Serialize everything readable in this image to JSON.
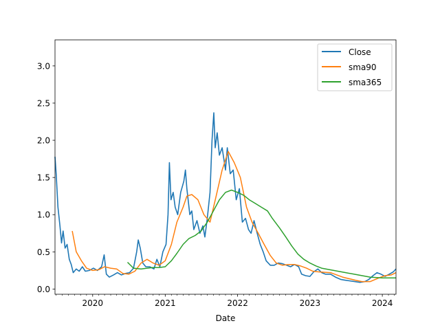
{
  "chart_data": {
    "type": "line",
    "title": "",
    "xlabel": "Date",
    "ylabel": "",
    "xlim": [
      "2019-06-25",
      "2024-03-10"
    ],
    "ylim": [
      -0.07,
      3.35
    ],
    "x_ticks": [
      "2020",
      "2021",
      "2022",
      "2023",
      "2024"
    ],
    "y_ticks": [
      "0.0",
      "0.5",
      "1.0",
      "1.5",
      "2.0",
      "2.5",
      "3.0"
    ],
    "legend": {
      "location": "top-right",
      "entries": [
        "Close",
        "sma90",
        "sma365"
      ]
    },
    "grid": false,
    "series": [
      {
        "name": "Close",
        "color": "#1f77b4",
        "points": [
          [
            "2019-06-25",
            1.78
          ],
          [
            "2019-07-01",
            1.55
          ],
          [
            "2019-07-10",
            1.1
          ],
          [
            "2019-07-20",
            0.85
          ],
          [
            "2019-07-28",
            0.62
          ],
          [
            "2019-08-05",
            0.78
          ],
          [
            "2019-08-15",
            0.55
          ],
          [
            "2019-08-25",
            0.6
          ],
          [
            "2019-09-05",
            0.4
          ],
          [
            "2019-09-15",
            0.33
          ],
          [
            "2019-09-25",
            0.22
          ],
          [
            "2019-10-10",
            0.27
          ],
          [
            "2019-10-25",
            0.24
          ],
          [
            "2019-11-10",
            0.3
          ],
          [
            "2019-11-25",
            0.24
          ],
          [
            "2019-12-15",
            0.25
          ],
          [
            "2020-01-05",
            0.28
          ],
          [
            "2020-01-25",
            0.25
          ],
          [
            "2020-02-15",
            0.3
          ],
          [
            "2020-02-28",
            0.46
          ],
          [
            "2020-03-10",
            0.2
          ],
          [
            "2020-03-25",
            0.16
          ],
          [
            "2020-04-15",
            0.19
          ],
          [
            "2020-05-05",
            0.22
          ],
          [
            "2020-05-25",
            0.19
          ],
          [
            "2020-06-15",
            0.21
          ],
          [
            "2020-07-05",
            0.22
          ],
          [
            "2020-07-25",
            0.28
          ],
          [
            "2020-08-10",
            0.5
          ],
          [
            "2020-08-18",
            0.66
          ],
          [
            "2020-08-28",
            0.55
          ],
          [
            "2020-09-10",
            0.35
          ],
          [
            "2020-09-25",
            0.3
          ],
          [
            "2020-10-15",
            0.3
          ],
          [
            "2020-11-05",
            0.27
          ],
          [
            "2020-11-20",
            0.4
          ],
          [
            "2020-12-05",
            0.3
          ],
          [
            "2020-12-20",
            0.5
          ],
          [
            "2021-01-05",
            0.6
          ],
          [
            "2021-01-15",
            1.0
          ],
          [
            "2021-01-22",
            1.7
          ],
          [
            "2021-01-30",
            1.2
          ],
          [
            "2021-02-10",
            1.3
          ],
          [
            "2021-02-20",
            1.1
          ],
          [
            "2021-03-05",
            1.0
          ],
          [
            "2021-03-20",
            1.3
          ],
          [
            "2021-04-05",
            1.45
          ],
          [
            "2021-04-13",
            1.6
          ],
          [
            "2021-04-20",
            1.35
          ],
          [
            "2021-05-05",
            1.0
          ],
          [
            "2021-05-15",
            1.05
          ],
          [
            "2021-05-25",
            0.8
          ],
          [
            "2021-06-10",
            0.92
          ],
          [
            "2021-06-25",
            0.75
          ],
          [
            "2021-07-10",
            0.85
          ],
          [
            "2021-07-20",
            0.7
          ],
          [
            "2021-08-01",
            0.95
          ],
          [
            "2021-08-15",
            1.3
          ],
          [
            "2021-08-25",
            2.0
          ],
          [
            "2021-09-03",
            2.37
          ],
          [
            "2021-09-10",
            1.9
          ],
          [
            "2021-09-20",
            2.1
          ],
          [
            "2021-10-01",
            1.8
          ],
          [
            "2021-10-15",
            1.9
          ],
          [
            "2021-11-01",
            1.6
          ],
          [
            "2021-11-10",
            1.9
          ],
          [
            "2021-11-25",
            1.55
          ],
          [
            "2021-12-10",
            1.6
          ],
          [
            "2021-12-25",
            1.2
          ],
          [
            "2022-01-10",
            1.35
          ],
          [
            "2022-01-25",
            0.9
          ],
          [
            "2022-02-10",
            0.95
          ],
          [
            "2022-02-25",
            0.8
          ],
          [
            "2022-03-10",
            0.75
          ],
          [
            "2022-03-25",
            0.92
          ],
          [
            "2022-04-10",
            0.75
          ],
          [
            "2022-04-25",
            0.6
          ],
          [
            "2022-05-10",
            0.5
          ],
          [
            "2022-05-25",
            0.38
          ],
          [
            "2022-06-15",
            0.32
          ],
          [
            "2022-07-05",
            0.32
          ],
          [
            "2022-07-25",
            0.35
          ],
          [
            "2022-08-15",
            0.34
          ],
          [
            "2022-09-05",
            0.32
          ],
          [
            "2022-09-25",
            0.3
          ],
          [
            "2022-10-15",
            0.33
          ],
          [
            "2022-11-05",
            0.3
          ],
          [
            "2022-11-20",
            0.2
          ],
          [
            "2022-12-10",
            0.18
          ],
          [
            "2023-01-01",
            0.17
          ],
          [
            "2023-01-20",
            0.23
          ],
          [
            "2023-02-10",
            0.27
          ],
          [
            "2023-03-01",
            0.22
          ],
          [
            "2023-03-20",
            0.2
          ],
          [
            "2023-04-15",
            0.2
          ],
          [
            "2023-05-10",
            0.16
          ],
          [
            "2023-06-05",
            0.13
          ],
          [
            "2023-06-25",
            0.12
          ],
          [
            "2023-07-20",
            0.11
          ],
          [
            "2023-08-15",
            0.1
          ],
          [
            "2023-09-10",
            0.09
          ],
          [
            "2023-10-05",
            0.1
          ],
          [
            "2023-10-25",
            0.13
          ],
          [
            "2023-11-15",
            0.18
          ],
          [
            "2023-12-05",
            0.22
          ],
          [
            "2023-12-25",
            0.2
          ],
          [
            "2024-01-15",
            0.17
          ],
          [
            "2024-02-05",
            0.2
          ],
          [
            "2024-02-25",
            0.23
          ],
          [
            "2024-03-10",
            0.27
          ]
        ]
      },
      {
        "name": "sma90",
        "color": "#ff7f0e",
        "points": [
          [
            "2019-09-20",
            0.78
          ],
          [
            "2019-10-10",
            0.5
          ],
          [
            "2019-11-05",
            0.38
          ],
          [
            "2019-12-01",
            0.28
          ],
          [
            "2020-01-01",
            0.25
          ],
          [
            "2020-02-01",
            0.26
          ],
          [
            "2020-03-01",
            0.3
          ],
          [
            "2020-04-01",
            0.28
          ],
          [
            "2020-05-01",
            0.27
          ],
          [
            "2020-06-01",
            0.21
          ],
          [
            "2020-07-01",
            0.2
          ],
          [
            "2020-08-01",
            0.24
          ],
          [
            "2020-09-01",
            0.35
          ],
          [
            "2020-10-01",
            0.4
          ],
          [
            "2020-11-01",
            0.35
          ],
          [
            "2020-12-01",
            0.32
          ],
          [
            "2021-01-01",
            0.38
          ],
          [
            "2021-02-01",
            0.6
          ],
          [
            "2021-03-01",
            0.9
          ],
          [
            "2021-04-01",
            1.1
          ],
          [
            "2021-04-20",
            1.25
          ],
          [
            "2021-05-15",
            1.27
          ],
          [
            "2021-06-15",
            1.2
          ],
          [
            "2021-07-15",
            1.0
          ],
          [
            "2021-08-15",
            0.9
          ],
          [
            "2021-09-15",
            1.25
          ],
          [
            "2021-10-15",
            1.6
          ],
          [
            "2021-11-15",
            1.85
          ],
          [
            "2021-12-15",
            1.7
          ],
          [
            "2022-01-15",
            1.5
          ],
          [
            "2022-02-15",
            1.1
          ],
          [
            "2022-03-15",
            0.9
          ],
          [
            "2022-04-15",
            0.75
          ],
          [
            "2022-05-15",
            0.6
          ],
          [
            "2022-06-15",
            0.45
          ],
          [
            "2022-07-15",
            0.35
          ],
          [
            "2022-08-15",
            0.32
          ],
          [
            "2022-09-15",
            0.33
          ],
          [
            "2022-10-15",
            0.33
          ],
          [
            "2022-11-15",
            0.31
          ],
          [
            "2022-12-15",
            0.28
          ],
          [
            "2023-01-15",
            0.24
          ],
          [
            "2023-02-15",
            0.23
          ],
          [
            "2023-04-15",
            0.22
          ],
          [
            "2023-06-15",
            0.16
          ],
          [
            "2023-08-15",
            0.12
          ],
          [
            "2023-09-20",
            0.1
          ],
          [
            "2023-11-01",
            0.1
          ],
          [
            "2023-12-15",
            0.15
          ],
          [
            "2024-01-15",
            0.18
          ],
          [
            "2024-02-15",
            0.19
          ],
          [
            "2024-03-10",
            0.22
          ]
        ]
      },
      {
        "name": "sma365",
        "color": "#2ca02c",
        "points": [
          [
            "2020-06-25",
            0.36
          ],
          [
            "2020-07-25",
            0.28
          ],
          [
            "2020-09-01",
            0.27
          ],
          [
            "2020-10-01",
            0.28
          ],
          [
            "2020-11-01",
            0.29
          ],
          [
            "2020-12-01",
            0.29
          ],
          [
            "2021-01-01",
            0.3
          ],
          [
            "2021-02-01",
            0.38
          ],
          [
            "2021-03-01",
            0.48
          ],
          [
            "2021-04-01",
            0.6
          ],
          [
            "2021-05-01",
            0.68
          ],
          [
            "2021-06-01",
            0.72
          ],
          [
            "2021-07-01",
            0.78
          ],
          [
            "2021-08-01",
            0.9
          ],
          [
            "2021-09-01",
            1.05
          ],
          [
            "2021-10-01",
            1.2
          ],
          [
            "2021-11-01",
            1.3
          ],
          [
            "2021-12-01",
            1.33
          ],
          [
            "2022-01-01",
            1.3
          ],
          [
            "2022-02-01",
            1.26
          ],
          [
            "2022-03-01",
            1.2
          ],
          [
            "2022-04-01",
            1.15
          ],
          [
            "2022-05-01",
            1.1
          ],
          [
            "2022-06-01",
            1.05
          ],
          [
            "2022-06-25",
            0.95
          ],
          [
            "2022-08-01",
            0.82
          ],
          [
            "2022-09-01",
            0.7
          ],
          [
            "2022-10-01",
            0.58
          ],
          [
            "2022-11-01",
            0.47
          ],
          [
            "2022-12-01",
            0.4
          ],
          [
            "2023-01-01",
            0.35
          ],
          [
            "2023-02-01",
            0.31
          ],
          [
            "2023-03-01",
            0.28
          ],
          [
            "2023-05-01",
            0.25
          ],
          [
            "2023-07-01",
            0.22
          ],
          [
            "2023-09-01",
            0.19
          ],
          [
            "2023-11-01",
            0.16
          ],
          [
            "2024-01-01",
            0.15
          ],
          [
            "2024-03-10",
            0.15
          ]
        ]
      }
    ]
  }
}
